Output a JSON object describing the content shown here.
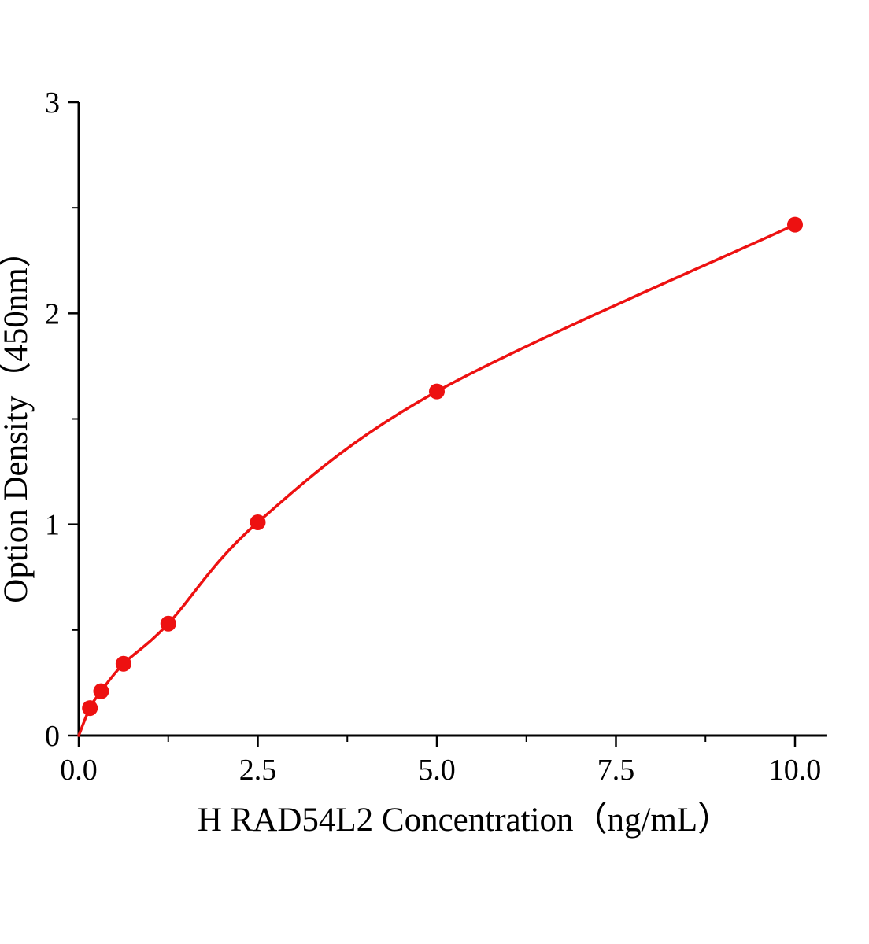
{
  "chart_data": {
    "type": "scatter",
    "title": "",
    "xlabel": "H RAD54L2 Concentration（ng/mL）",
    "ylabel": "Option Density（450nm）",
    "x": [
      0.156,
      0.313,
      0.625,
      1.25,
      2.5,
      5.0,
      10.0
    ],
    "y": [
      0.13,
      0.21,
      0.34,
      0.53,
      1.01,
      1.63,
      2.42
    ],
    "curve_start": {
      "x": 0,
      "y": 0
    },
    "xlim": [
      0,
      10.45
    ],
    "ylim": [
      0,
      3
    ],
    "x_ticks": [
      0.0,
      2.5,
      5.0,
      7.5,
      10.0
    ],
    "x_tick_labels": [
      "0.0",
      "2.5",
      "5.0",
      "7.5",
      "10.0"
    ],
    "x_minor_ticks": [
      1.25,
      3.75,
      6.25,
      8.75
    ],
    "y_ticks": [
      0,
      1,
      2,
      3
    ],
    "y_tick_labels": [
      "0",
      "1",
      "2",
      "3"
    ],
    "y_minor_ticks": [
      0.5,
      1.5,
      2.5
    ],
    "grid": "off",
    "legend": "none",
    "colors": {
      "curve": "#ed1111",
      "marker": "#ed1111",
      "axis": "#000000"
    }
  }
}
